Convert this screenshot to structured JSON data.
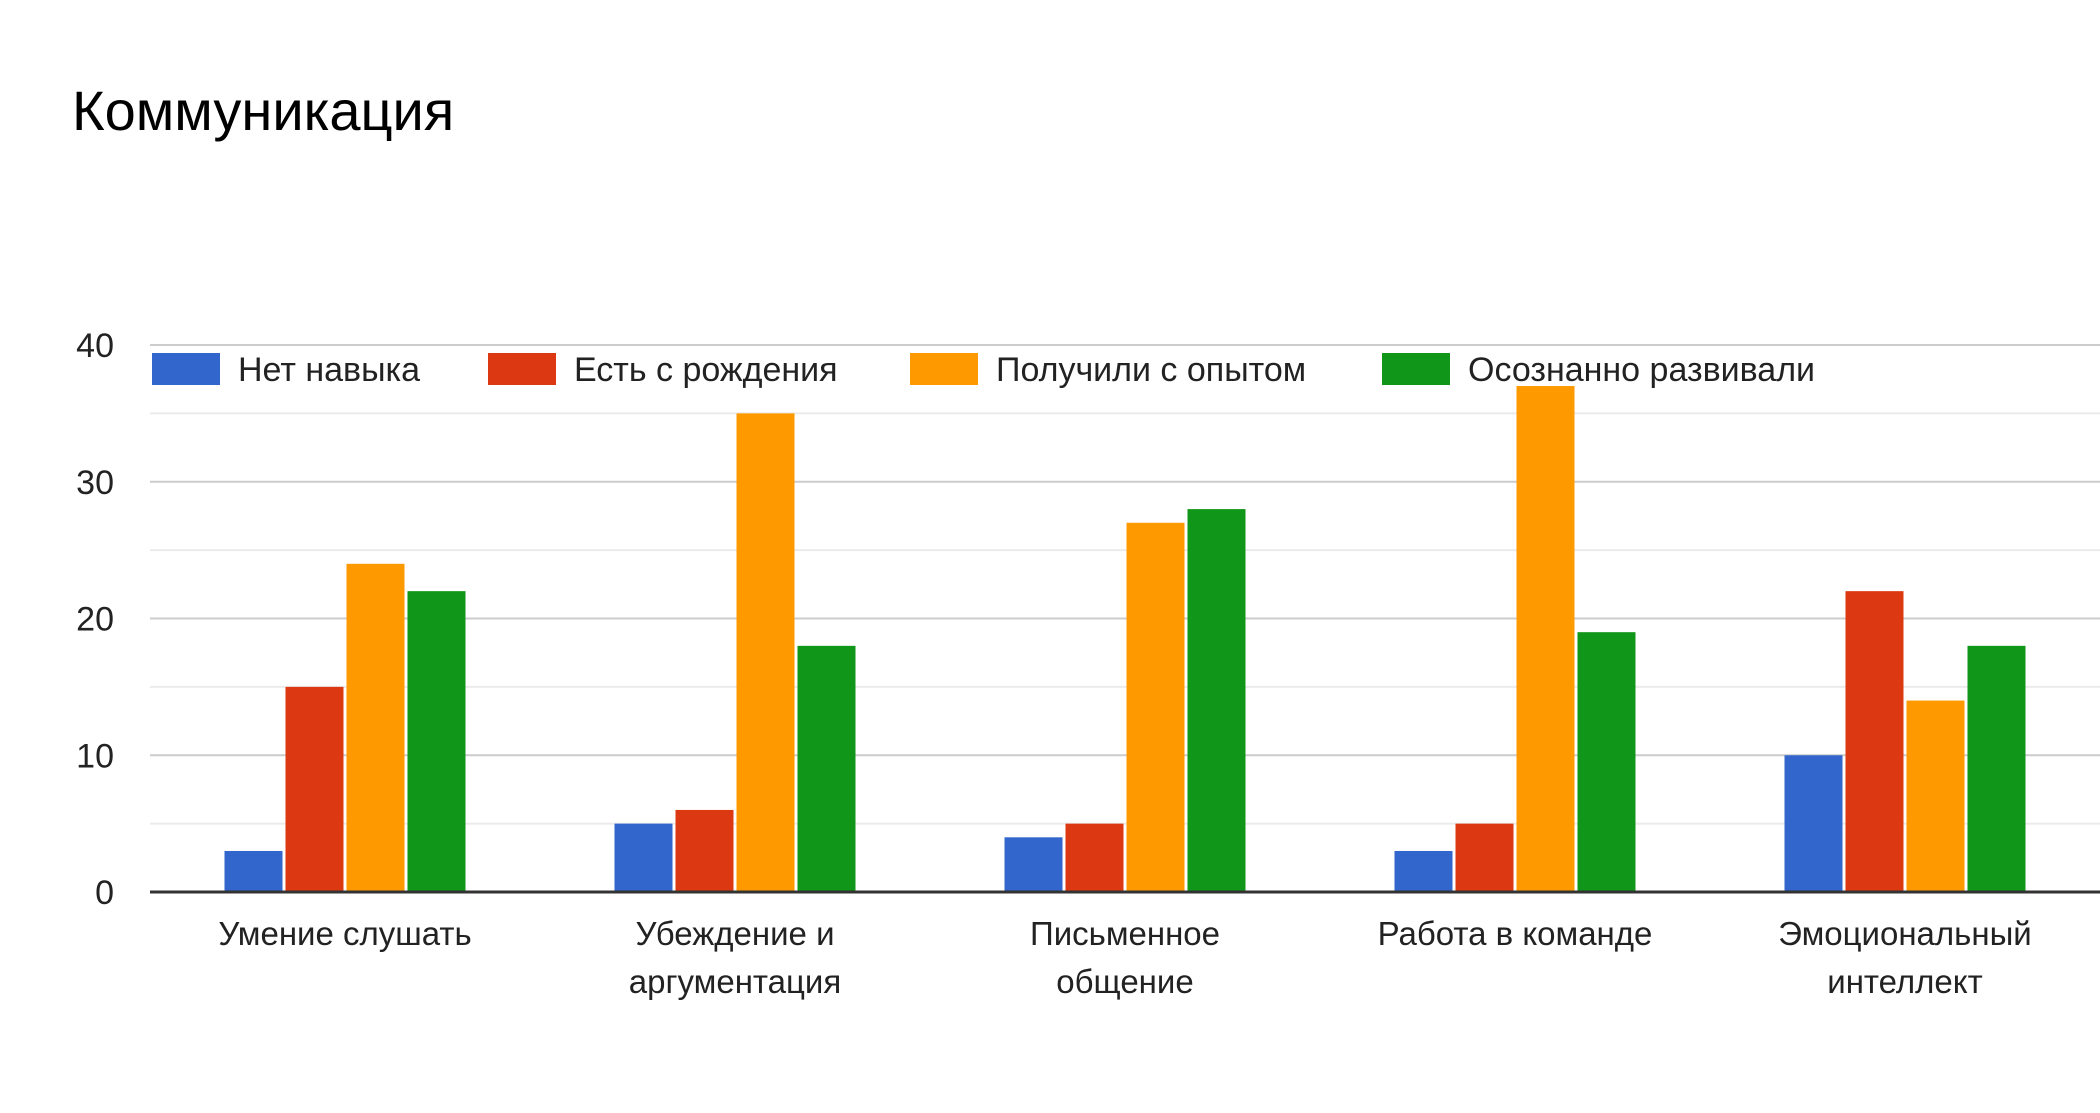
{
  "chart_data": {
    "type": "bar",
    "title": "Коммуникация",
    "xlabel": "",
    "ylabel": "",
    "categories": [
      "Умение слушать",
      "Убеждение и аргументация",
      "Письменное общение",
      "Работа в команде",
      "Эмоциональный интеллект"
    ],
    "category_lines": [
      [
        "Умение слушать"
      ],
      [
        "Убеждение и",
        "аргументация"
      ],
      [
        "Письменное",
        "общение"
      ],
      [
        "Работа в команде"
      ],
      [
        "Эмоциональный",
        "интеллект"
      ]
    ],
    "series": [
      {
        "name": "Нет навыка",
        "color": "#3366cc",
        "values": [
          3,
          5,
          4,
          3,
          10
        ]
      },
      {
        "name": "Есть с рождения",
        "color": "#dc3912",
        "values": [
          15,
          6,
          5,
          5,
          22
        ]
      },
      {
        "name": "Получили с опытом",
        "color": "#ff9900",
        "values": [
          24,
          35,
          27,
          37,
          14
        ]
      },
      {
        "name": "Осознанно развивали",
        "color": "#109618",
        "values": [
          22,
          18,
          28,
          19,
          18
        ]
      }
    ],
    "ylim": [
      0,
      40
    ],
    "yticks": [
      0,
      10,
      20,
      30,
      40
    ],
    "grid": true,
    "legend_position": "top"
  }
}
